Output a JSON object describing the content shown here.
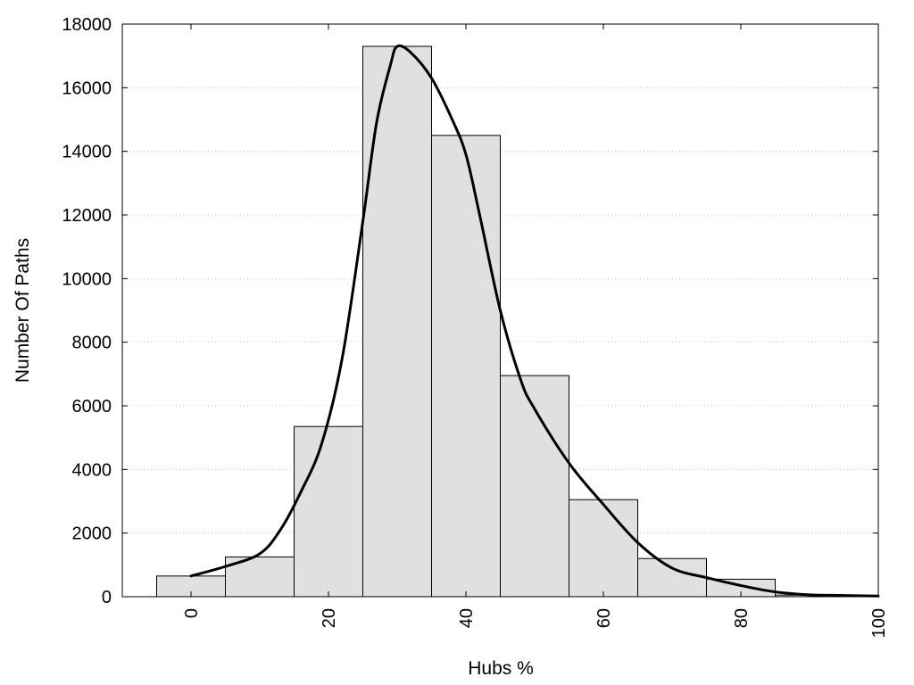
{
  "chart_data": {
    "type": "bar",
    "subtype": "histogram with smooth density curve overlay",
    "xlabel": "Hubs %",
    "ylabel": "Number Of Paths",
    "xlim": [
      -10,
      100
    ],
    "ylim": [
      0,
      18000
    ],
    "x_ticks": [
      0,
      20,
      40,
      60,
      80,
      100
    ],
    "y_ticks": [
      0,
      2000,
      4000,
      6000,
      8000,
      10000,
      12000,
      14000,
      16000,
      18000
    ],
    "bin_width": 10,
    "bin_centers": [
      0,
      10,
      20,
      30,
      40,
      50,
      60,
      70,
      80,
      90
    ],
    "values": [
      650,
      1250,
      5350,
      17300,
      14500,
      6950,
      3050,
      1200,
      550,
      50
    ],
    "curve": {
      "x": [
        0,
        5,
        10,
        13,
        16,
        19,
        22,
        25,
        27,
        29,
        30,
        32,
        35,
        38,
        40,
        42,
        45,
        48,
        50,
        55,
        60,
        65,
        70,
        75,
        80,
        85,
        90,
        95,
        100
      ],
      "y": [
        650,
        950,
        1350,
        2100,
        3300,
        4800,
        7500,
        11800,
        14900,
        16700,
        17300,
        17100,
        16300,
        15000,
        13900,
        12000,
        9000,
        6800,
        5900,
        4200,
        2900,
        1700,
        900,
        600,
        350,
        150,
        60,
        40,
        20
      ]
    },
    "grid": "horizontal dotted at major y ticks",
    "legend": "none",
    "colors": {
      "bar_fill": "#e0e0e0",
      "bar_stroke": "#000000",
      "curve": "#000000"
    }
  }
}
